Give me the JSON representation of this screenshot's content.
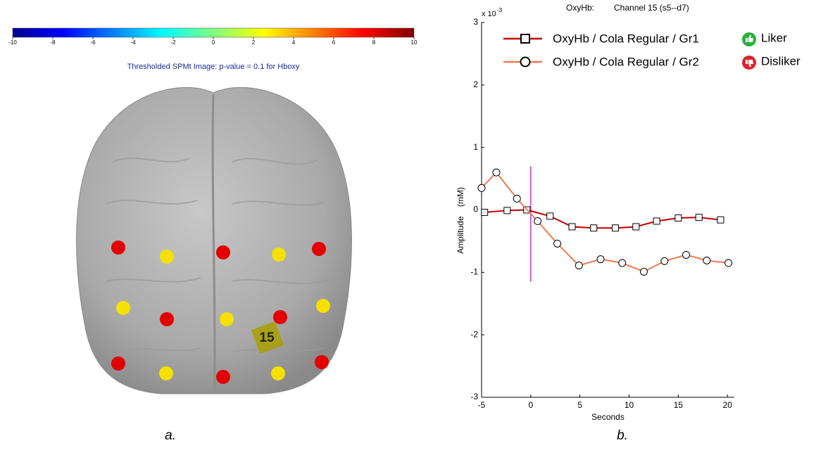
{
  "chart_data": [
    {
      "type": "colorbar",
      "title": "Thresholded SPMt Image: p-value = 0.1 for Hboxy",
      "colormap": "jet",
      "xlim": [
        -10,
        10
      ],
      "xticks": [
        -10,
        -8,
        -6,
        -4,
        -2,
        0,
        2,
        4,
        6,
        8,
        10
      ]
    },
    {
      "type": "line",
      "title": "OxyHb:",
      "subtitle": "Channel 15 (s5--d7)",
      "x_label": "Seconds",
      "y_label": "Amplitude    (mM)",
      "y_multiplier": {
        "base": "x 10",
        "exponent": "-3"
      },
      "xlim": [
        -5,
        20.7
      ],
      "xticks": [
        -5,
        0,
        5,
        10,
        15,
        20
      ],
      "ylim": [
        -3,
        3
      ],
      "yticks": [
        -3,
        -2,
        -1,
        0,
        1,
        2,
        3
      ],
      "vline": {
        "x": 0,
        "y_range": [
          -1.15,
          0.7
        ],
        "color": "#e020e0"
      },
      "series": [
        {
          "name": "OxyHb / Cola Regular / Gr1",
          "group": "Liker",
          "color": "#c00000",
          "marker": "square",
          "x": [
            -4.7,
            -2.4,
            -0.4,
            1.96,
            4.2,
            6.4,
            8.6,
            10.7,
            12.8,
            15.0,
            17.1,
            19.3
          ],
          "values": [
            -0.04,
            -0.01,
            0.0,
            -0.1,
            -0.27,
            -0.29,
            -0.29,
            -0.27,
            -0.18,
            -0.13,
            -0.12,
            -0.16
          ]
        },
        {
          "name": "OxyHb / Cola Regular / Gr2",
          "group": "Disliker",
          "color": "#f07850",
          "marker": "circle",
          "x": [
            -5,
            -3.5,
            -1.4,
            0.7,
            2.7,
            4.9,
            7.1,
            9.3,
            11.5,
            13.6,
            15.8,
            17.9,
            20.1
          ],
          "values": [
            0.35,
            0.6,
            0.18,
            -0.18,
            -0.54,
            -0.89,
            -0.79,
            -0.85,
            -0.99,
            -0.82,
            -0.72,
            -0.81,
            -0.85
          ]
        }
      ]
    }
  ],
  "brain": {
    "channel_label": "15"
  },
  "captions": [
    "a.",
    "b."
  ]
}
